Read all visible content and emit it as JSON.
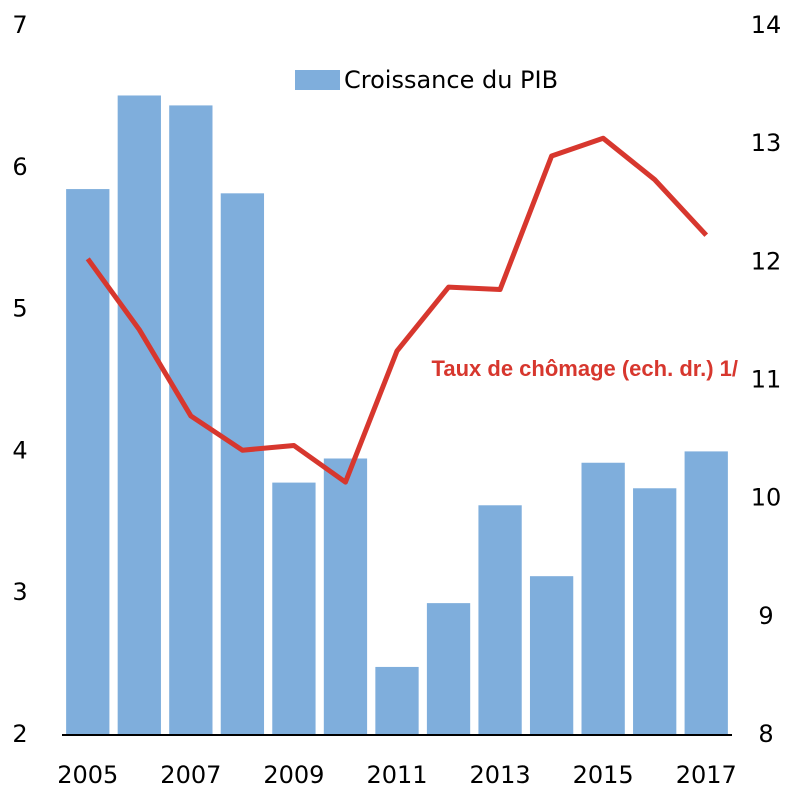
{
  "chart_data": {
    "type": "bar",
    "categories": [
      "2005",
      null,
      "2007",
      null,
      "2009",
      null,
      "2011",
      null,
      "2013",
      null,
      "2015",
      null,
      "2017"
    ],
    "series": [
      {
        "name": "Croissance du PIB",
        "color": "#7faedc",
        "values": [
          5.85,
          6.51,
          6.44,
          5.82,
          3.78,
          3.95,
          2.48,
          2.93,
          3.62,
          3.12,
          3.92,
          3.74,
          4.0
        ]
      },
      {
        "name": "Taux de chômage (ech. dr.) 1/",
        "type": "line",
        "axis": "y2",
        "color": "#d7372e",
        "values": [
          12.03,
          11.43,
          10.7,
          10.41,
          10.45,
          10.14,
          11.25,
          11.79,
          11.77,
          12.9,
          13.05,
          12.7,
          12.23
        ]
      }
    ],
    "ylim": [
      2,
      7
    ],
    "yticks": [
      2,
      3,
      4,
      5,
      6,
      7
    ],
    "y2lim": [
      8,
      14
    ],
    "y2ticks": [
      8,
      9,
      10,
      11,
      12,
      13,
      14
    ]
  }
}
